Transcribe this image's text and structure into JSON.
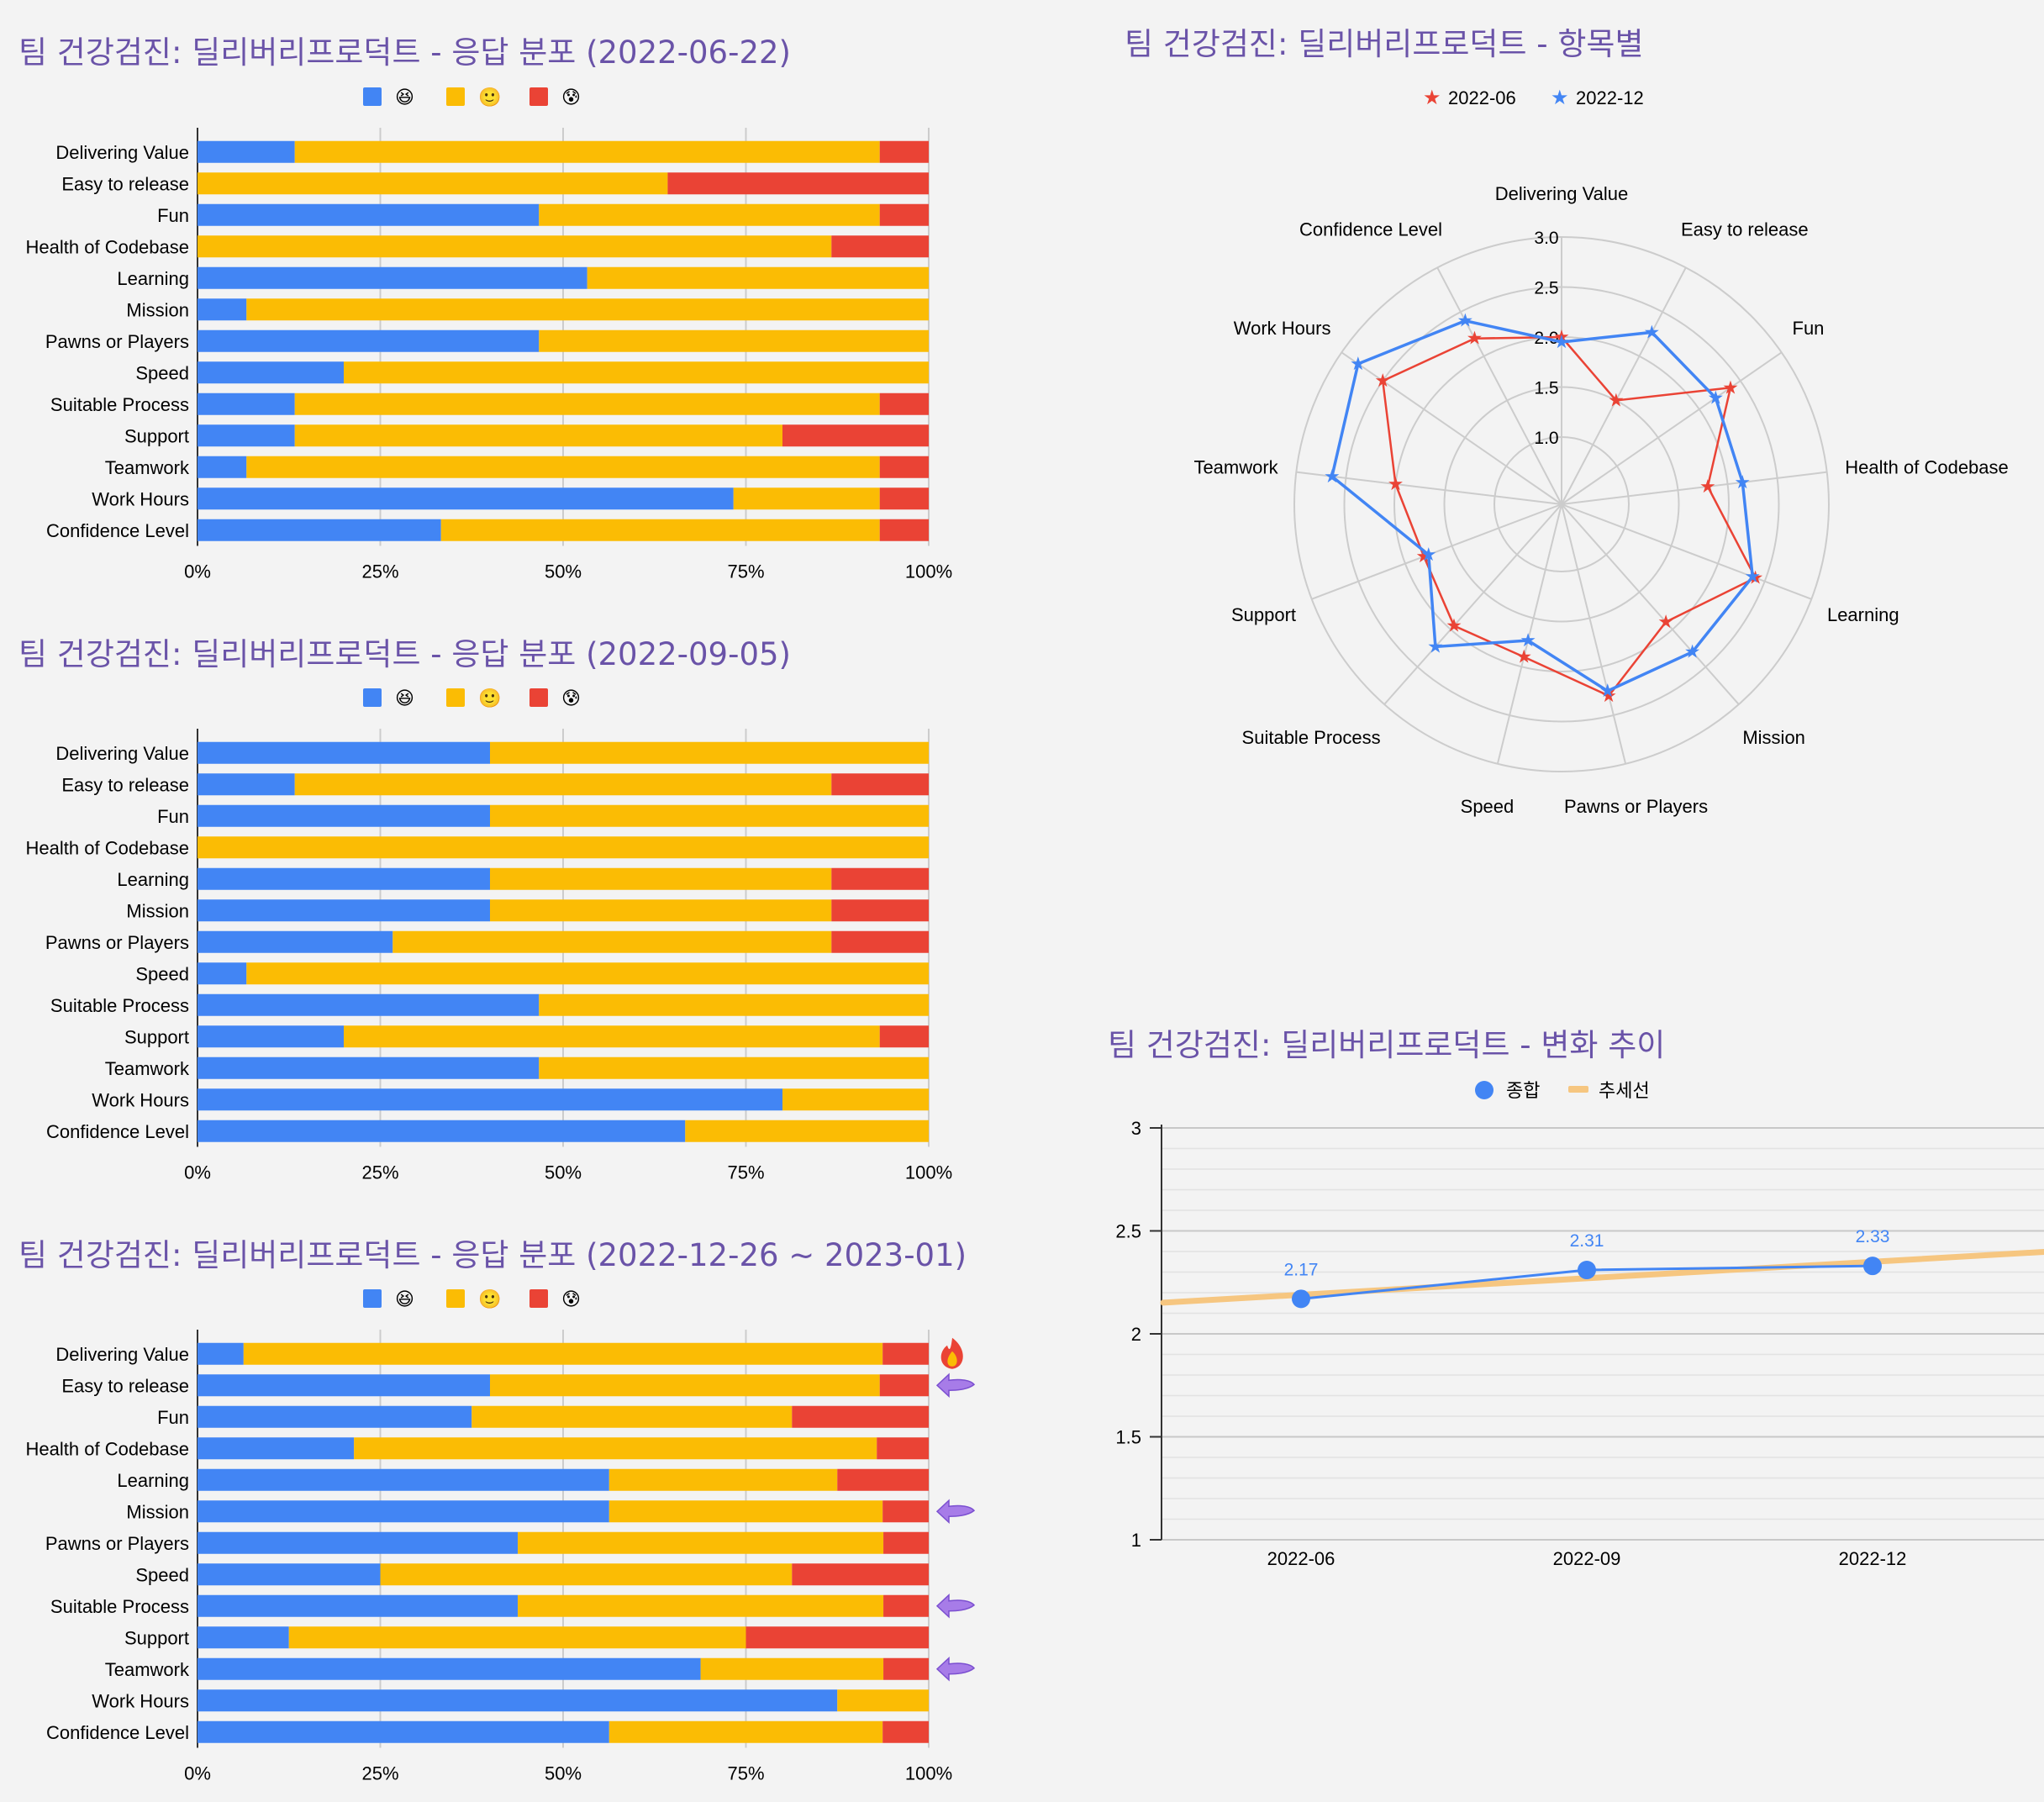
{
  "colors": {
    "title": "#6a53a8",
    "blue": "#4285f4",
    "yellow": "#fbbc04",
    "red": "#ea4335",
    "trend": "#f6c680",
    "axis": "#333333",
    "grid": "#cccccc",
    "arrow": "#a77ce8"
  },
  "legend_emoji": [
    "😆",
    "🙂",
    "😰"
  ],
  "chart_data": [
    {
      "type": "bar",
      "stacked": "percent",
      "orientation": "horizontal",
      "title": "팀 건강검진: 딜리버리프로덕트  - 응답 분포 (2022-06-22)",
      "categories": [
        "Delivering Value",
        "Easy to release",
        "Fun",
        "Health of Codebase",
        "Learning",
        "Mission",
        "Pawns or Players",
        "Speed",
        "Suitable Process",
        "Support",
        "Teamwork",
        "Work Hours",
        "Confidence Level"
      ],
      "series": [
        {
          "legend_icon": "😆",
          "color": "#4285f4",
          "values": [
            13.3,
            0,
            46.7,
            0,
            53.3,
            6.7,
            46.7,
            20,
            13.3,
            13.3,
            6.7,
            73.3,
            33.3
          ]
        },
        {
          "legend_icon": "🙂",
          "color": "#fbbc04",
          "values": [
            80,
            64.3,
            46.6,
            86.7,
            46.7,
            93.3,
            53.3,
            80,
            80,
            66.7,
            86.6,
            20,
            60
          ]
        },
        {
          "legend_icon": "😰",
          "color": "#ea4335",
          "values": [
            6.7,
            35.7,
            6.7,
            13.3,
            0,
            0,
            0,
            0,
            6.7,
            20,
            6.7,
            6.7,
            6.7
          ]
        }
      ],
      "x_ticks": [
        "0%",
        "25%",
        "50%",
        "75%",
        "100%"
      ]
    },
    {
      "type": "bar",
      "stacked": "percent",
      "orientation": "horizontal",
      "title": "팀 건강검진: 딜리버리프로덕트 - 응답 분포 (2022-09-05)",
      "categories": [
        "Delivering Value",
        "Easy to release",
        "Fun",
        "Health of Codebase",
        "Learning",
        "Mission",
        "Pawns or Players",
        "Speed",
        "Suitable Process",
        "Support",
        "Teamwork",
        "Work Hours",
        "Confidence Level"
      ],
      "series": [
        {
          "legend_icon": "😆",
          "color": "#4285f4",
          "values": [
            40,
            13.3,
            40,
            0,
            40,
            40,
            26.7,
            6.7,
            46.7,
            20,
            46.7,
            80,
            66.7
          ]
        },
        {
          "legend_icon": "🙂",
          "color": "#fbbc04",
          "values": [
            60,
            73.4,
            60,
            100,
            46.7,
            46.7,
            60,
            93.3,
            53.3,
            73.3,
            53.3,
            20,
            33.3
          ]
        },
        {
          "legend_icon": "😰",
          "color": "#ea4335",
          "values": [
            0,
            13.3,
            0,
            0,
            13.3,
            13.3,
            13.3,
            0,
            0,
            6.7,
            0,
            0,
            0
          ]
        }
      ],
      "x_ticks": [
        "0%",
        "25%",
        "50%",
        "75%",
        "100%"
      ]
    },
    {
      "type": "bar",
      "stacked": "percent",
      "orientation": "horizontal",
      "title": "팀 건강검진: 딜리버리프로덕트 - 응답 분포 (2022-12-26 ~ 2023-01)",
      "categories": [
        "Delivering Value",
        "Easy to release",
        "Fun",
        "Health of Codebase",
        "Learning",
        "Mission",
        "Pawns or Players",
        "Speed",
        "Suitable Process",
        "Support",
        "Teamwork",
        "Work Hours",
        "Confidence Level"
      ],
      "series": [
        {
          "legend_icon": "😆",
          "color": "#4285f4",
          "values": [
            6.3,
            40,
            37.5,
            21.4,
            56.3,
            56.3,
            43.8,
            25,
            43.8,
            12.5,
            68.8,
            87.5,
            56.3
          ]
        },
        {
          "legend_icon": "🙂",
          "color": "#fbbc04",
          "values": [
            87.4,
            53.3,
            43.8,
            71.5,
            31.2,
            37.4,
            50,
            56.3,
            50,
            62.5,
            25,
            12.5,
            37.4
          ]
        },
        {
          "legend_icon": "😰",
          "color": "#ea4335",
          "values": [
            6.3,
            6.7,
            18.7,
            7.1,
            12.5,
            6.3,
            6.2,
            18.7,
            6.2,
            25,
            6.2,
            0,
            6.3
          ]
        }
      ],
      "x_ticks": [
        "0%",
        "25%",
        "50%",
        "75%",
        "100%"
      ],
      "annotations": [
        {
          "category": "Delivering Value",
          "icon": "fire-icon"
        },
        {
          "category": "Easy to release",
          "icon": "purple-arrow-icon"
        },
        {
          "category": "Mission",
          "icon": "purple-arrow-icon"
        },
        {
          "category": "Suitable Process",
          "icon": "purple-arrow-icon"
        },
        {
          "category": "Teamwork",
          "icon": "purple-arrow-icon"
        }
      ]
    },
    {
      "type": "radar",
      "title": "팀 건강검진: 딜리버리프로덕트 - 항목별",
      "categories": [
        "Delivering Value",
        "Easy to release",
        "Fun",
        "Health of Codebase",
        "Learning",
        "Mission",
        "Pawns or Players",
        "Speed",
        "Suitable Process",
        "Support",
        "Teamwork",
        "Work Hours",
        "Confidence Level"
      ],
      "series": [
        {
          "name": "2022-06",
          "color": "#ea4335",
          "marker": "star",
          "values": [
            2.0,
            1.5,
            2.38,
            1.8,
            2.4,
            1.9,
            2.3,
            1.9,
            1.95,
            1.8,
            2.0,
            2.5,
            2.2
          ]
        },
        {
          "name": "2022-12",
          "color": "#4285f4",
          "marker": "star",
          "values": [
            1.95,
            2.27,
            2.2,
            2.15,
            2.37,
            2.3,
            2.25,
            1.73,
            2.23,
            1.75,
            2.64,
            2.8,
            2.4
          ]
        }
      ],
      "r_ticks": [
        "1.0",
        "1.5",
        "2.0",
        "2.5",
        "3.0"
      ],
      "rlim": [
        1.0,
        3.0
      ]
    },
    {
      "type": "line",
      "title": "팀 건강검진: 딜리버리프로덕트 - 변화 추이",
      "categories": [
        "2022-06",
        "2022-09",
        "2022-12"
      ],
      "series": [
        {
          "name": "종합",
          "color": "#4285f4",
          "values": [
            2.17,
            2.31,
            2.33
          ],
          "data_labels": [
            "2.17",
            "2.31",
            "2.33"
          ]
        },
        {
          "name": "추세선",
          "color": "#f6c680",
          "trendline": true
        }
      ],
      "y_ticks": [
        "1",
        "1.5",
        "2",
        "2.5",
        "3"
      ],
      "ylim": [
        1,
        3
      ]
    }
  ]
}
